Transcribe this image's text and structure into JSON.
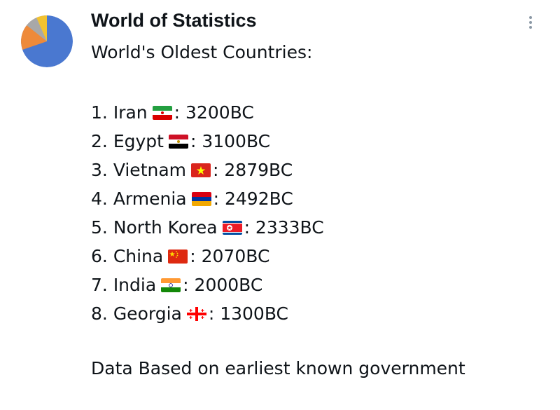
{
  "post": {
    "author": "World of Statistics",
    "headline": "World's Oldest Countries:",
    "items": [
      {
        "rank": "1.",
        "country": "Iran",
        "flag_icon": "iran-flag-icon",
        "year": ": 3200BC"
      },
      {
        "rank": "2.",
        "country": "Egypt",
        "flag_icon": "egypt-flag-icon",
        "year": ": 3100BC"
      },
      {
        "rank": "3.",
        "country": "Vietnam",
        "flag_icon": "vietnam-flag-icon",
        "year": ": 2879BC"
      },
      {
        "rank": "4.",
        "country": "Armenia",
        "flag_icon": "armenia-flag-icon",
        "year": ": 2492BC"
      },
      {
        "rank": "5.",
        "country": "North Korea",
        "flag_icon": "north-korea-flag-icon",
        "year": ": 2333BC"
      },
      {
        "rank": "6.",
        "country": "China",
        "flag_icon": "china-flag-icon",
        "year": ": 2070BC"
      },
      {
        "rank": "7.",
        "country": "India",
        "flag_icon": "india-flag-icon",
        "year": ": 2000BC"
      },
      {
        "rank": "8.",
        "country": "Georgia",
        "flag_icon": "georgia-flag-icon",
        "year": ": 1300BC"
      }
    ],
    "footer": "Data Based on earliest known government"
  },
  "icons": {
    "avatar": "pie-chart-avatar-icon",
    "more": "more-options-icon"
  },
  "colors": {
    "text": "#0f1419",
    "avatar_blue": "#4a78d0",
    "avatar_orange": "#ee8a3a",
    "avatar_yellow": "#f2c230",
    "avatar_gray": "#a8a8a8"
  }
}
